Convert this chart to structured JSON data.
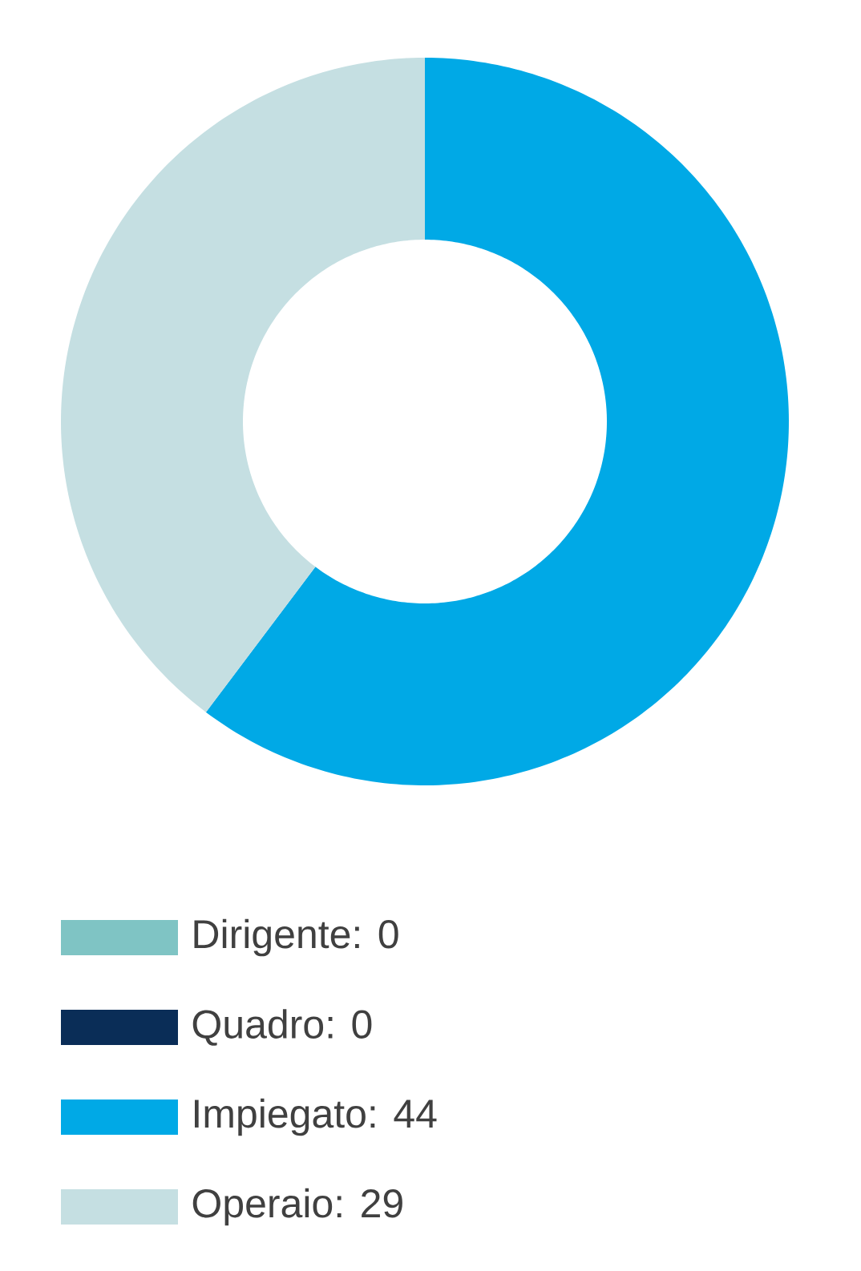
{
  "chart_data": {
    "type": "donut",
    "categories": [
      "Dirigente: 0",
      "Quadro: 0",
      "Impiegato: 44",
      "Operaio: 29"
    ],
    "values": [
      0,
      0,
      44,
      29
    ],
    "colors": [
      "#7fc4c4",
      "#0a2d57",
      "#00a9e6",
      "#c5dfe2"
    ],
    "legend": "bottom"
  }
}
